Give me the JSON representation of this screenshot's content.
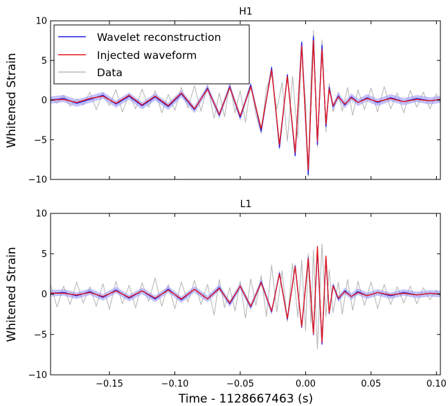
{
  "chart_data": {
    "type": "line",
    "xlabel": "Time - 1128667463 (s)",
    "x_ticks": [
      -0.15,
      -0.1,
      -0.05,
      0.0,
      0.05,
      0.1
    ],
    "x_tick_labels": [
      "−0.15",
      "−0.10",
      "−0.05",
      "0.00",
      "0.05",
      "0.10"
    ],
    "xlim": [
      -0.195,
      0.103
    ],
    "legend": {
      "placement": "upper-left",
      "entries": [
        {
          "name": "Wavelet reconstruction",
          "color": "#1f1fe6"
        },
        {
          "name": "Injected waveform",
          "color": "#e31a1c"
        },
        {
          "name": "Data",
          "color": "#b8b8b8"
        }
      ]
    },
    "panels": [
      {
        "title": "H1",
        "ylabel": "Whitened Strain",
        "ylim": [
          -10,
          10
        ],
        "y_ticks": [
          -10,
          -5,
          0,
          5,
          10
        ],
        "y_tick_labels": [
          "−10",
          "−5",
          "0",
          "5",
          "10"
        ],
        "series": [
          {
            "name": "Wavelet reconstruction",
            "color": "#1f1fe6",
            "band": 0.45,
            "x": [
              -0.195,
              -0.185,
              -0.175,
              -0.165,
              -0.155,
              -0.145,
              -0.135,
              -0.125,
              -0.115,
              -0.105,
              -0.095,
              -0.085,
              -0.075,
              -0.066,
              -0.058,
              -0.05,
              -0.042,
              -0.034,
              -0.026,
              -0.02,
              -0.014,
              -0.008,
              -0.003,
              0.002,
              0.006,
              0.009,
              0.0125,
              0.0155,
              0.018,
              0.021,
              0.025,
              0.03,
              0.035,
              0.04,
              0.047,
              0.055,
              0.065,
              0.075,
              0.085,
              0.095,
              0.103
            ],
            "y": [
              0.0,
              0.2,
              -0.4,
              0.1,
              0.6,
              -0.5,
              0.5,
              -0.7,
              0.4,
              -0.8,
              0.8,
              -1.2,
              1.5,
              -1.9,
              1.7,
              -2.2,
              1.9,
              -3.9,
              4.1,
              -6.0,
              3.2,
              -7.0,
              7.3,
              -9.4,
              8.0,
              -5.6,
              6.9,
              -3.3,
              1.6,
              -0.8,
              0.5,
              -0.6,
              0.4,
              -0.3,
              0.3,
              -0.3,
              0.3,
              -0.2,
              0.2,
              -0.1,
              0.1
            ]
          },
          {
            "name": "Injected waveform",
            "color": "#e31a1c",
            "x": [
              -0.195,
              -0.185,
              -0.175,
              -0.165,
              -0.155,
              -0.145,
              -0.135,
              -0.125,
              -0.115,
              -0.105,
              -0.095,
              -0.085,
              -0.075,
              -0.066,
              -0.058,
              -0.05,
              -0.042,
              -0.034,
              -0.026,
              -0.02,
              -0.014,
              -0.008,
              -0.003,
              0.002,
              0.006,
              0.009,
              0.0125,
              0.0155,
              0.018,
              0.021,
              0.025,
              0.03,
              0.035,
              0.04,
              0.047,
              0.055,
              0.065,
              0.075,
              0.085,
              0.095,
              0.103
            ],
            "y": [
              0.0,
              0.1,
              -0.3,
              0.2,
              0.5,
              -0.4,
              0.6,
              -0.6,
              0.5,
              -0.7,
              0.9,
              -1.1,
              1.4,
              -1.8,
              1.6,
              -2.0,
              1.7,
              -3.6,
              3.8,
              -5.6,
              3.0,
              -6.6,
              6.8,
              -8.8,
              7.5,
              -5.2,
              6.4,
              -3.0,
              1.4,
              -0.7,
              0.4,
              -0.5,
              0.3,
              -0.3,
              0.2,
              -0.2,
              0.2,
              -0.2,
              0.1,
              -0.1,
              0.1
            ]
          },
          {
            "name": "Data",
            "color": "#b8b8b8",
            "x": [
              -0.195,
              -0.19,
              -0.185,
              -0.18,
              -0.175,
              -0.17,
              -0.165,
              -0.16,
              -0.155,
              -0.15,
              -0.145,
              -0.14,
              -0.135,
              -0.13,
              -0.125,
              -0.12,
              -0.115,
              -0.11,
              -0.105,
              -0.1,
              -0.095,
              -0.09,
              -0.085,
              -0.08,
              -0.075,
              -0.07,
              -0.066,
              -0.062,
              -0.058,
              -0.054,
              -0.05,
              -0.046,
              -0.042,
              -0.038,
              -0.034,
              -0.03,
              -0.026,
              -0.022,
              -0.018,
              -0.014,
              -0.01,
              -0.006,
              -0.003,
              0.0,
              0.002,
              0.004,
              0.006,
              0.009,
              0.0125,
              0.0155,
              0.018,
              0.021,
              0.025,
              0.028,
              0.032,
              0.036,
              0.04,
              0.045,
              0.05,
              0.055,
              0.06,
              0.065,
              0.07,
              0.075,
              0.08,
              0.085,
              0.09,
              0.095,
              0.1,
              0.103
            ],
            "y": [
              0.3,
              -0.4,
              0.6,
              -0.8,
              0.2,
              -0.6,
              1.0,
              -1.2,
              0.9,
              -0.7,
              1.3,
              -1.5,
              0.8,
              -1.1,
              1.4,
              -0.9,
              1.2,
              -1.6,
              0.7,
              -1.3,
              1.6,
              -1.0,
              1.8,
              -1.4,
              1.9,
              -2.3,
              0.9,
              -2.1,
              2.2,
              -1.6,
              1.2,
              -2.8,
              2.0,
              -1.8,
              -4.2,
              1.5,
              3.2,
              -1.2,
              2.2,
              -5.2,
              3.0,
              -4.8,
              6.5,
              -0.5,
              -9.6,
              2.4,
              8.8,
              -5.9,
              7.6,
              -4.0,
              2.1,
              -1.5,
              1.0,
              -1.4,
              1.6,
              -1.9,
              1.3,
              -1.2,
              1.5,
              -1.5,
              1.7,
              -1.1,
              0.9,
              -1.6,
              1.2,
              -0.9,
              1.0,
              -1.1,
              0.8,
              -0.4
            ]
          }
        ]
      },
      {
        "title": "L1",
        "ylabel": "Whitened Strain",
        "ylim": [
          -10,
          10
        ],
        "y_ticks": [
          -10,
          -5,
          0,
          5,
          10
        ],
        "y_tick_labels": [
          "−10",
          "−5",
          "0",
          "5",
          "10"
        ],
        "series": [
          {
            "name": "Wavelet reconstruction",
            "color": "#1f1fe6",
            "band": 0.4,
            "x": [
              -0.195,
              -0.185,
              -0.175,
              -0.165,
              -0.155,
              -0.145,
              -0.135,
              -0.125,
              -0.115,
              -0.105,
              -0.095,
              -0.085,
              -0.075,
              -0.066,
              -0.058,
              -0.05,
              -0.042,
              -0.034,
              -0.026,
              -0.02,
              -0.014,
              -0.008,
              -0.003,
              0.002,
              0.006,
              0.009,
              0.0125,
              0.0155,
              0.018,
              0.021,
              0.025,
              0.03,
              0.035,
              0.04,
              0.047,
              0.055,
              0.065,
              0.075,
              0.085,
              0.095,
              0.103
            ],
            "y": [
              0.1,
              0.2,
              -0.2,
              0.3,
              -0.4,
              0.5,
              -0.5,
              0.4,
              -0.6,
              0.6,
              -0.7,
              0.6,
              -0.6,
              0.8,
              -1.2,
              1.0,
              -1.6,
              1.5,
              -2.2,
              2.6,
              -3.1,
              3.5,
              -4.1,
              4.5,
              -5.0,
              5.6,
              -6.2,
              4.6,
              -2.4,
              1.1,
              -0.6,
              0.4,
              -0.3,
              0.3,
              -0.2,
              0.2,
              -0.2,
              0.2,
              -0.1,
              0.1,
              0.0
            ]
          },
          {
            "name": "Injected waveform",
            "color": "#e31a1c",
            "x": [
              -0.195,
              -0.185,
              -0.175,
              -0.165,
              -0.155,
              -0.145,
              -0.135,
              -0.125,
              -0.115,
              -0.105,
              -0.095,
              -0.085,
              -0.075,
              -0.066,
              -0.058,
              -0.05,
              -0.042,
              -0.034,
              -0.026,
              -0.02,
              -0.014,
              -0.008,
              -0.003,
              0.002,
              0.006,
              0.009,
              0.0125,
              0.0155,
              0.018,
              0.021,
              0.025,
              0.03,
              0.035,
              0.04,
              0.047,
              0.055,
              0.065,
              0.075,
              0.085,
              0.095,
              0.103
            ],
            "y": [
              0.1,
              0.1,
              -0.1,
              0.2,
              -0.3,
              0.4,
              -0.4,
              0.4,
              -0.5,
              0.5,
              -0.6,
              0.6,
              -0.6,
              0.7,
              -1.1,
              1.0,
              -1.5,
              1.4,
              -2.1,
              2.5,
              -3.0,
              3.4,
              -4.0,
              4.4,
              -4.9,
              5.9,
              -6.0,
              4.7,
              -2.3,
              1.0,
              -0.5,
              0.3,
              -0.3,
              0.2,
              -0.2,
              0.2,
              -0.1,
              0.1,
              -0.1,
              0.1,
              0.0
            ]
          },
          {
            "name": "Data",
            "color": "#b8b8b8",
            "x": [
              -0.195,
              -0.19,
              -0.185,
              -0.18,
              -0.175,
              -0.17,
              -0.165,
              -0.16,
              -0.155,
              -0.15,
              -0.145,
              -0.14,
              -0.135,
              -0.13,
              -0.125,
              -0.12,
              -0.115,
              -0.11,
              -0.105,
              -0.1,
              -0.095,
              -0.09,
              -0.085,
              -0.08,
              -0.075,
              -0.07,
              -0.066,
              -0.062,
              -0.058,
              -0.054,
              -0.05,
              -0.046,
              -0.042,
              -0.038,
              -0.034,
              -0.03,
              -0.026,
              -0.022,
              -0.018,
              -0.014,
              -0.01,
              -0.006,
              -0.003,
              0.0,
              0.002,
              0.004,
              0.006,
              0.009,
              0.0125,
              0.0155,
              0.018,
              0.021,
              0.025,
              0.028,
              0.032,
              0.036,
              0.04,
              0.045,
              0.05,
              0.055,
              0.06,
              0.065,
              0.07,
              0.075,
              0.08,
              0.085,
              0.09,
              0.095,
              0.1,
              0.103
            ],
            "y": [
              1.2,
              -1.6,
              1.0,
              -1.3,
              1.5,
              -1.1,
              0.9,
              -1.5,
              1.3,
              -1.9,
              1.6,
              -1.2,
              1.1,
              -1.7,
              1.4,
              -0.9,
              2.0,
              -1.5,
              1.2,
              -1.8,
              1.5,
              -1.0,
              1.7,
              -1.3,
              1.2,
              -2.6,
              1.8,
              -1.7,
              0.8,
              -2.1,
              1.6,
              -3.0,
              1.9,
              -1.4,
              2.3,
              -2.8,
              3.6,
              -2.2,
              2.9,
              -3.4,
              3.8,
              -2.9,
              4.2,
              -4.6,
              5.0,
              -3.6,
              5.5,
              -6.8,
              6.2,
              -2.8,
              3.0,
              -2.3,
              1.5,
              -2.5,
              1.8,
              -2.0,
              1.6,
              -1.4,
              1.5,
              -1.8,
              1.2,
              -1.3,
              0.9,
              -1.1,
              1.0,
              -1.2,
              0.8,
              -0.7,
              0.5,
              -0.3
            ]
          }
        ]
      }
    ]
  }
}
